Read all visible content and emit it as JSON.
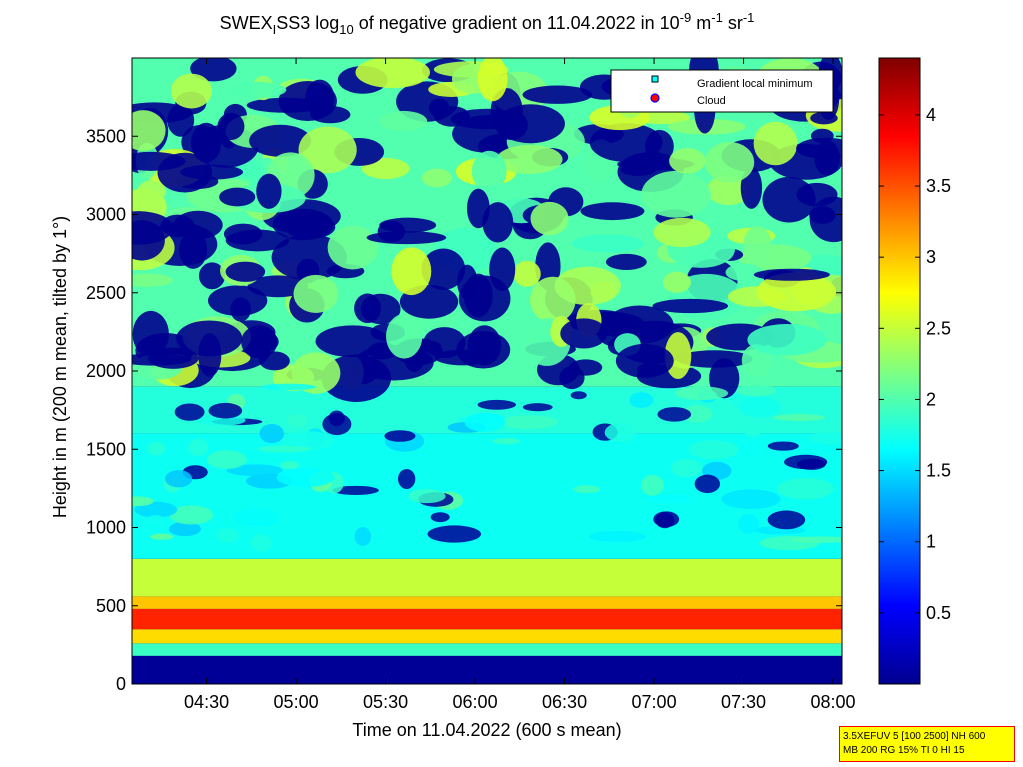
{
  "figure": {
    "title_parts": {
      "pre": "SWEX",
      "sub1": "I",
      "mid": "SS3 log",
      "sub2": "10",
      "post1": " of negative gradient on 11.04.2022 in 10",
      "sup1": "-9",
      "post2": " m",
      "sup2": "-1",
      "post3": " sr",
      "sup3": "-1"
    },
    "note_lines": [
      "3.5XEFUV 5 [100 2500] NH 600",
      "MB 200 RG 15% TI 0 HI 15"
    ]
  },
  "chart_data": {
    "type": "heatmap",
    "title": "SWEX_ISS3 log10 of negative gradient on 11.04.2022 in 10^-9 m^-1 sr^-1",
    "xlabel": "Time on 11.04.2022 (600 s mean)",
    "ylabel": "Height in m (200 m mean, tilted by 1°)",
    "x_ticks": [
      "04:30",
      "05:00",
      "05:30",
      "06:00",
      "06:30",
      "07:00",
      "07:30",
      "08:00"
    ],
    "x_range": [
      "04:05",
      "08:03"
    ],
    "y_ticks": [
      0,
      500,
      1000,
      1500,
      2000,
      2500,
      3000,
      3500
    ],
    "y_range": [
      0,
      4000
    ],
    "colorbar": {
      "ticks": [
        0.5,
        1,
        1.5,
        2,
        2.5,
        3,
        3.5,
        4
      ],
      "range": [
        0,
        4.4
      ],
      "colormap": "jet"
    },
    "legend": {
      "position": "top-right",
      "entries": [
        {
          "label": "Gradient local minimum",
          "marker": "square",
          "color": "#00ffff"
        },
        {
          "label": "Cloud",
          "marker": "circle",
          "color": "#ff0000"
        }
      ]
    },
    "layers": [
      {
        "from_m": 0,
        "to_m": 180,
        "value": 0.1
      },
      {
        "from_m": 180,
        "to_m": 260,
        "value": 1.9
      },
      {
        "from_m": 260,
        "to_m": 350,
        "value": 2.9
      },
      {
        "from_m": 350,
        "to_m": 480,
        "value": 3.7
      },
      {
        "from_m": 480,
        "to_m": 560,
        "value": 3.0
      },
      {
        "from_m": 560,
        "to_m": 800,
        "value": 2.5
      },
      {
        "from_m": 800,
        "to_m": 1600,
        "value": 1.7
      },
      {
        "from_m": 1600,
        "to_m": 1900,
        "value": 1.8
      },
      {
        "from_m": 1900,
        "to_m": 4000,
        "value": 2.0
      }
    ]
  }
}
